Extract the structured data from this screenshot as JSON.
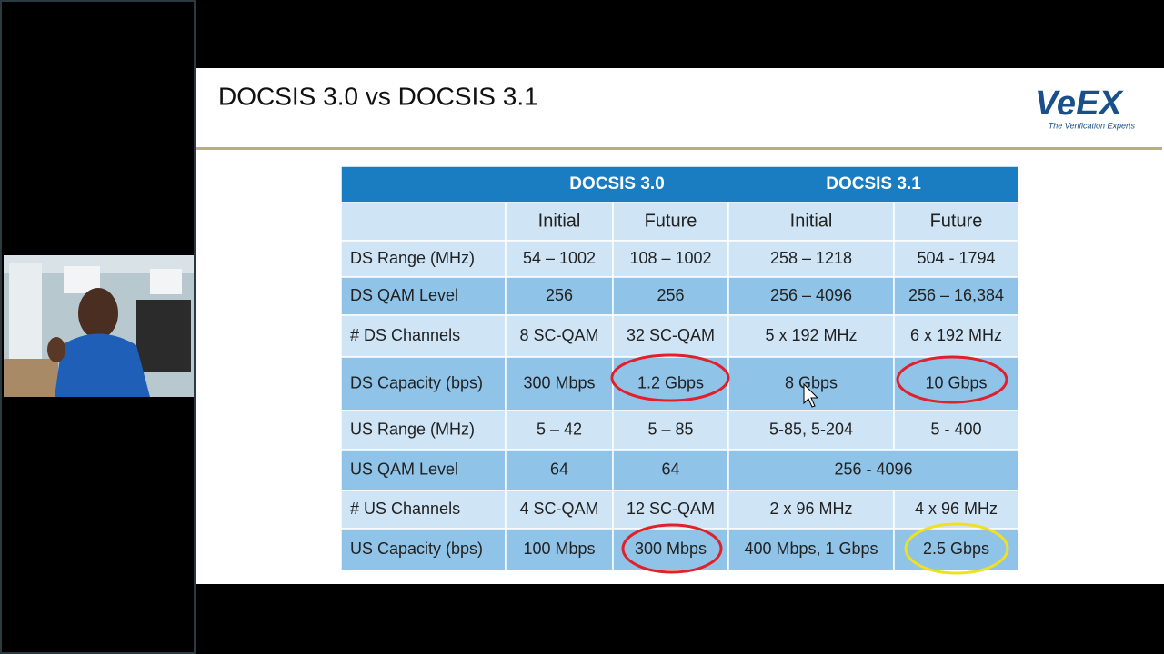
{
  "slide": {
    "title": "DOCSIS 3.0 vs DOCSIS 3.1"
  },
  "logo": {
    "name": "VeEX",
    "tagline": "The Verification Experts"
  },
  "table": {
    "groups": [
      "DOCSIS 3.0",
      "DOCSIS 3.1"
    ],
    "subheaders": [
      "Initial",
      "Future",
      "Initial",
      "Future"
    ],
    "rows": [
      [
        "DS Range (MHz)",
        "54 – 1002",
        "108 – 1002",
        "258 – 1218",
        "504 - 1794"
      ],
      [
        "DS QAM Level",
        "256",
        "256",
        "256 – 4096",
        "256 – 16,384"
      ],
      [
        "# DS Channels",
        "8 SC-QAM",
        "32 SC-QAM",
        "5 x 192 MHz",
        "6 x 192 MHz"
      ],
      [
        "DS Capacity (bps)",
        "300 Mbps",
        "1.2 Gbps",
        "8 Gbps",
        "10 Gbps"
      ],
      [
        "US Range (MHz)",
        "5 – 42",
        "5 – 85",
        "5-85, 5-204",
        "5 - 400"
      ],
      [
        "US QAM Level",
        "64",
        "64",
        "256 - 4096"
      ],
      [
        "# US Channels",
        "4 SC-QAM",
        "12 SC-QAM",
        "2 x 96 MHz",
        "4 x 96 MHz"
      ],
      [
        "US Capacity (bps)",
        "100 Mbps",
        "300 Mbps",
        "400 Mbps, 1 Gbps",
        "2.5 Gbps"
      ]
    ]
  }
}
